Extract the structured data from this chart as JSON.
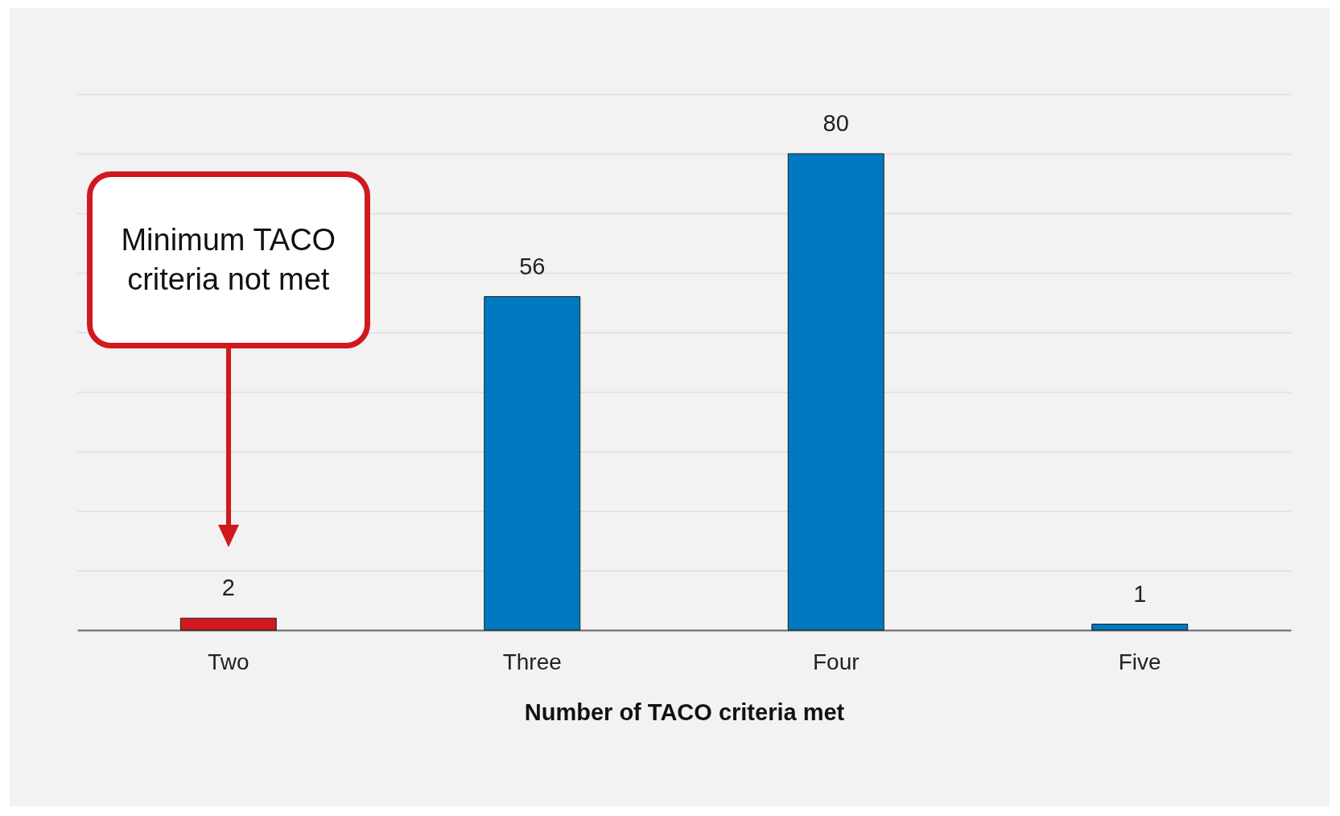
{
  "chart_data": {
    "type": "bar",
    "xlabel": "Number of TACO criteria met",
    "categories": [
      "Two",
      "Three",
      "Four",
      "Five"
    ],
    "values": [
      2,
      56,
      80,
      1
    ],
    "colors": [
      "#d0191f",
      "#0079c1",
      "#0079c1",
      "#0079c1"
    ],
    "ylim": [
      0,
      90
    ],
    "yticks": [
      {
        "value": 0,
        "label": null
      },
      {
        "value": 10,
        "label": null
      },
      {
        "value": 20,
        "label": null
      },
      {
        "value": 30,
        "label": null
      },
      {
        "value": 40,
        "label": null
      },
      {
        "value": 50,
        "label": null
      },
      {
        "value": 60,
        "label": null
      },
      {
        "value": 70,
        "label": null
      },
      {
        "value": 80,
        "label": null
      },
      {
        "value": 90,
        "label": null
      }
    ],
    "grid": "y",
    "tick_labels": "x",
    "data_labels": true,
    "annotations": [
      "Minimum TACO criteria not met"
    ]
  }
}
